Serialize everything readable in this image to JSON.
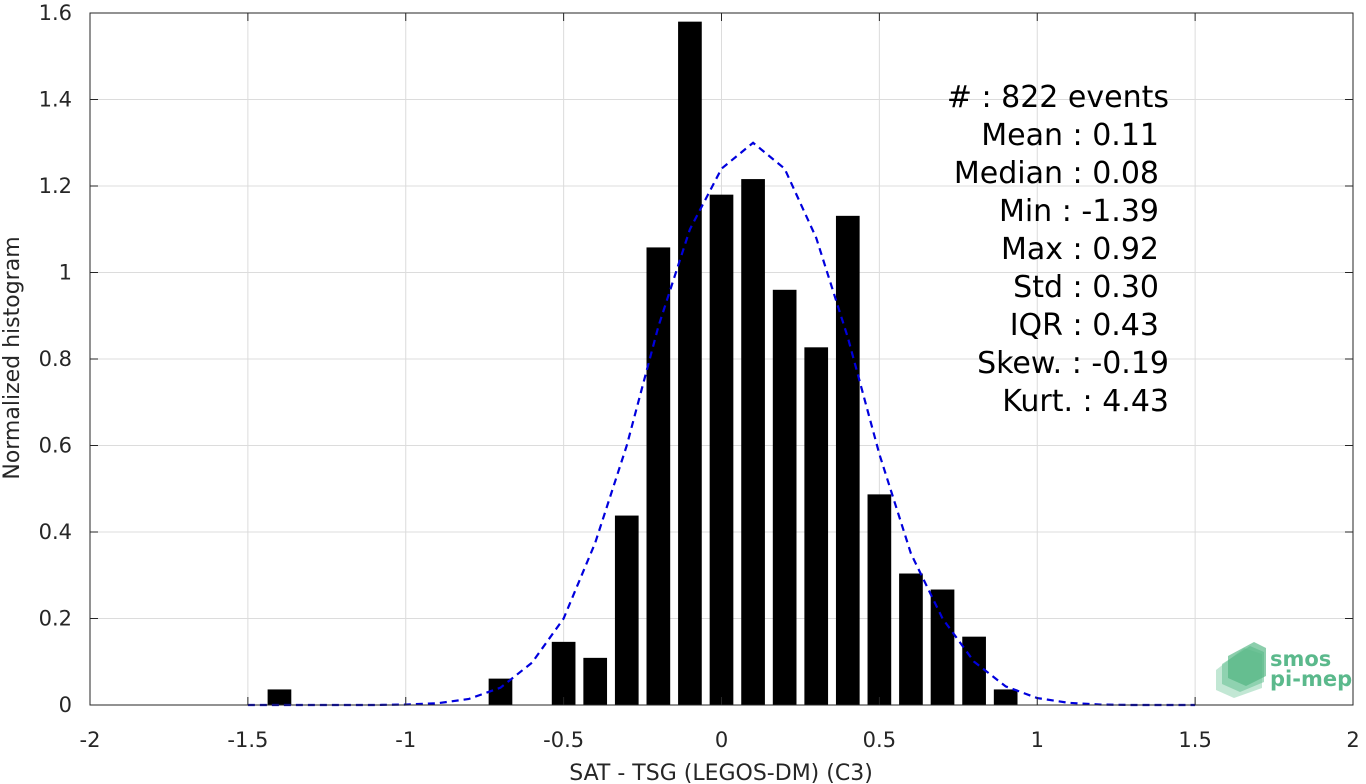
{
  "chart_data": {
    "type": "bar",
    "xlabel": "SAT - TSG (LEGOS-DM) (C3)",
    "ylabel": "Normalized histogram",
    "xlim": [
      -2,
      2
    ],
    "ylim": [
      0,
      1.6
    ],
    "grid": true,
    "bin_width": 0.1,
    "x_ticks": [
      -2,
      -1.5,
      -1,
      -0.5,
      0,
      0.5,
      1,
      1.5,
      2
    ],
    "x_tick_labels": [
      "-2",
      "-1.5",
      "-1",
      "-0.5",
      "0",
      "0.5",
      "1",
      "1.5",
      "2"
    ],
    "y_ticks": [
      0,
      0.2,
      0.4,
      0.6,
      0.8,
      1,
      1.2,
      1.4,
      1.6
    ],
    "y_tick_labels": [
      "0",
      "0.2",
      "0.4",
      "0.6",
      "0.8",
      "1",
      "1.2",
      "1.4",
      "1.6"
    ],
    "x": [
      -1.4,
      -0.7,
      -0.5,
      -0.4,
      -0.3,
      -0.2,
      -0.1,
      0.0,
      0.1,
      0.2,
      0.3,
      0.4,
      0.5,
      0.6,
      0.7,
      0.8,
      0.9
    ],
    "values": [
      0.036,
      0.061,
      0.146,
      0.109,
      0.438,
      1.058,
      1.58,
      1.18,
      1.216,
      0.96,
      0.827,
      1.131,
      0.487,
      0.304,
      0.267,
      0.158,
      0.036
    ],
    "series": [
      {
        "style": "dashed",
        "color": "#0000dd",
        "x": [
          -1.5,
          -1.4,
          -1.3,
          -1.2,
          -1.1,
          -1.0,
          -0.9,
          -0.8,
          -0.7,
          -0.6,
          -0.5,
          -0.4,
          -0.3,
          -0.2,
          -0.1,
          0.0,
          0.1,
          0.2,
          0.3,
          0.4,
          0.5,
          0.6,
          0.7,
          0.8,
          0.9,
          1.0,
          1.1,
          1.2,
          1.3,
          1.4,
          1.5
        ],
        "values": [
          0.0,
          0.0,
          0.0,
          0.0,
          0.0,
          0.001,
          0.004,
          0.014,
          0.04,
          0.098,
          0.2,
          0.375,
          0.6,
          0.875,
          1.1,
          1.24,
          1.3,
          1.24,
          1.08,
          0.85,
          0.58,
          0.35,
          0.2,
          0.1,
          0.043,
          0.016,
          0.005,
          0.001,
          0.0,
          0.0,
          0.0
        ]
      }
    ]
  },
  "stats": {
    "lines": [
      "#  : 822 events",
      "Mean : 0.11",
      "Median : 0.08",
      "Min : -1.39",
      "Max : 0.92",
      "Std : 0.30",
      "IQR : 0.43",
      "Skew. : -0.19",
      "Kurt. : 4.43"
    ]
  },
  "logo": {
    "line1": "smos",
    "line2": "pi-mep",
    "color": "#5bb98c"
  },
  "colors": {
    "bars": "#000000",
    "fit_line": "#0000dd",
    "grid": "#dcdcdc",
    "axis": "#262626"
  }
}
